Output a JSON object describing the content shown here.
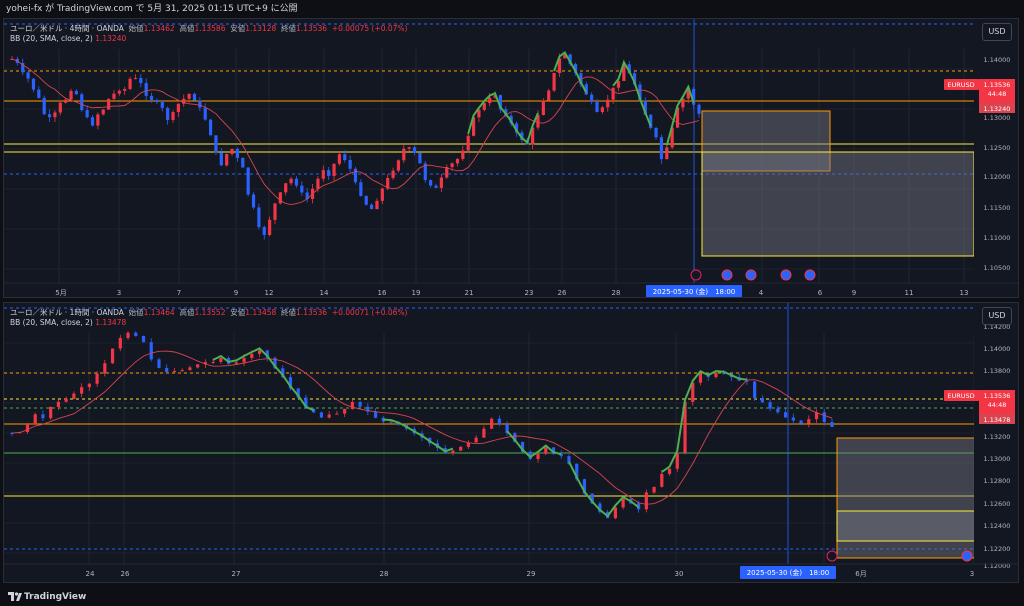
{
  "header": {
    "publisher": "yohei-fx が TradingView.com で 5月 31, 2025 01:15 UTC+9 に公開"
  },
  "colors": {
    "up": "#f23645",
    "down": "#2962ff",
    "bg": "#131722",
    "grid": "#2a2e39",
    "bb": "#d64550",
    "hma_up": "#4caf50",
    "level_orange": "#ff9800",
    "level_yellow": "#ffeb3b",
    "level_blue": "#2962ff"
  },
  "panel1": {
    "symbol_line": {
      "name": "ユーロ／米ドル · 4時間 · OANDA",
      "o_lbl": "始値",
      "o": "1.13462",
      "h_lbl": "高値",
      "h": "1.13586",
      "l_lbl": "安値",
      "l": "1.13128",
      "c_lbl": "終値",
      "c": "1.13536",
      "chg": "+0.00075 (+0.07%)"
    },
    "bb_line": {
      "name": "BB (20, SMA, close, 2)",
      "value": "1.13240"
    },
    "currency": "USD",
    "price_ticks": [
      "1.14000",
      "1.13500",
      "1.13000",
      "1.12500",
      "1.12000",
      "1.11500",
      "1.11000",
      "1.10500"
    ],
    "tag_symbol": "EURUSD",
    "tag_price": "1.13536",
    "tag_timer": "44:48",
    "tag_bb": "1.13240",
    "time_labels": [
      "5月",
      "3",
      "7",
      "9",
      "12",
      "14",
      "16",
      "19",
      "21",
      "23",
      "26",
      "28",
      "4",
      "6",
      "9",
      "11",
      "13"
    ],
    "cursor_label": "2025-05-30 (金)　18:00"
  },
  "panel2": {
    "symbol_line": {
      "name": "ユーロ／米ドル · 1時間 · OANDA",
      "o_lbl": "始値",
      "o": "1.13464",
      "h_lbl": "高値",
      "h": "1.13552",
      "l_lbl": "安値",
      "l": "1.13458",
      "c_lbl": "終値",
      "c": "1.13536",
      "chg": "+0.00071 (+0.06%)"
    },
    "bb_line": {
      "name": "BB (20, SMA, close, 2)",
      "value": "1.13478"
    },
    "currency": "USD",
    "price_ticks": [
      "1.14200",
      "1.14000",
      "1.13800",
      "1.13600",
      "1.13400",
      "1.13200",
      "1.13000",
      "1.12800",
      "1.12600",
      "1.12400",
      "1.12200",
      "1.12000"
    ],
    "tag_symbol": "EURUSD",
    "tag_price": "1.13536",
    "tag_timer": "44:48",
    "tag_bb": "1.13478",
    "time_labels": [
      "24",
      "26",
      "27",
      "28",
      "29",
      "30",
      "6月",
      "3"
    ],
    "cursor_label": "2025-05-30 (金)　18:00"
  },
  "footer": {
    "brand": "TradingView"
  }
}
